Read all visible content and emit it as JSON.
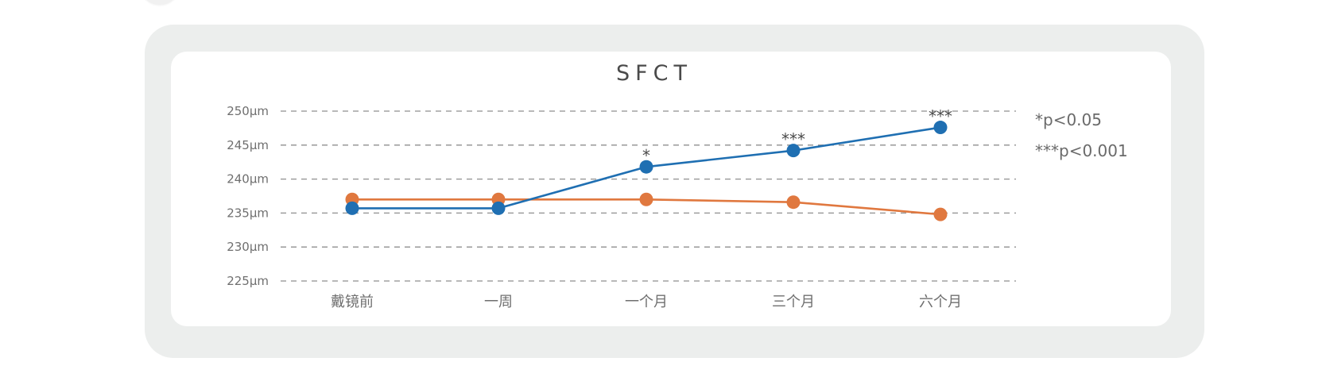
{
  "chart_data": {
    "type": "line",
    "title": "SFCT",
    "xlabel": "",
    "ylabel": "",
    "categories": [
      "戴镜前",
      "一周",
      "一个月",
      "三个月",
      "六个月"
    ],
    "y_ticks": [
      "225μm",
      "230μm",
      "235μm",
      "240μm",
      "245μm",
      "250μm"
    ],
    "ylim": [
      225,
      250
    ],
    "grid": true,
    "series": [
      {
        "color": "#e0783f",
        "values": [
          237.0,
          237.0,
          237.0,
          236.6,
          234.8
        ]
      },
      {
        "color": "#1f6fb2",
        "values": [
          235.7,
          235.7,
          241.8,
          244.2,
          247.6
        ]
      }
    ],
    "significance_marks": [
      {
        "series": 1,
        "index": 2,
        "label": "*"
      },
      {
        "series": 1,
        "index": 3,
        "label": "***"
      },
      {
        "series": 1,
        "index": 4,
        "label": "***"
      }
    ],
    "notes": [
      "*p<0.05",
      "***p<0.001"
    ]
  }
}
